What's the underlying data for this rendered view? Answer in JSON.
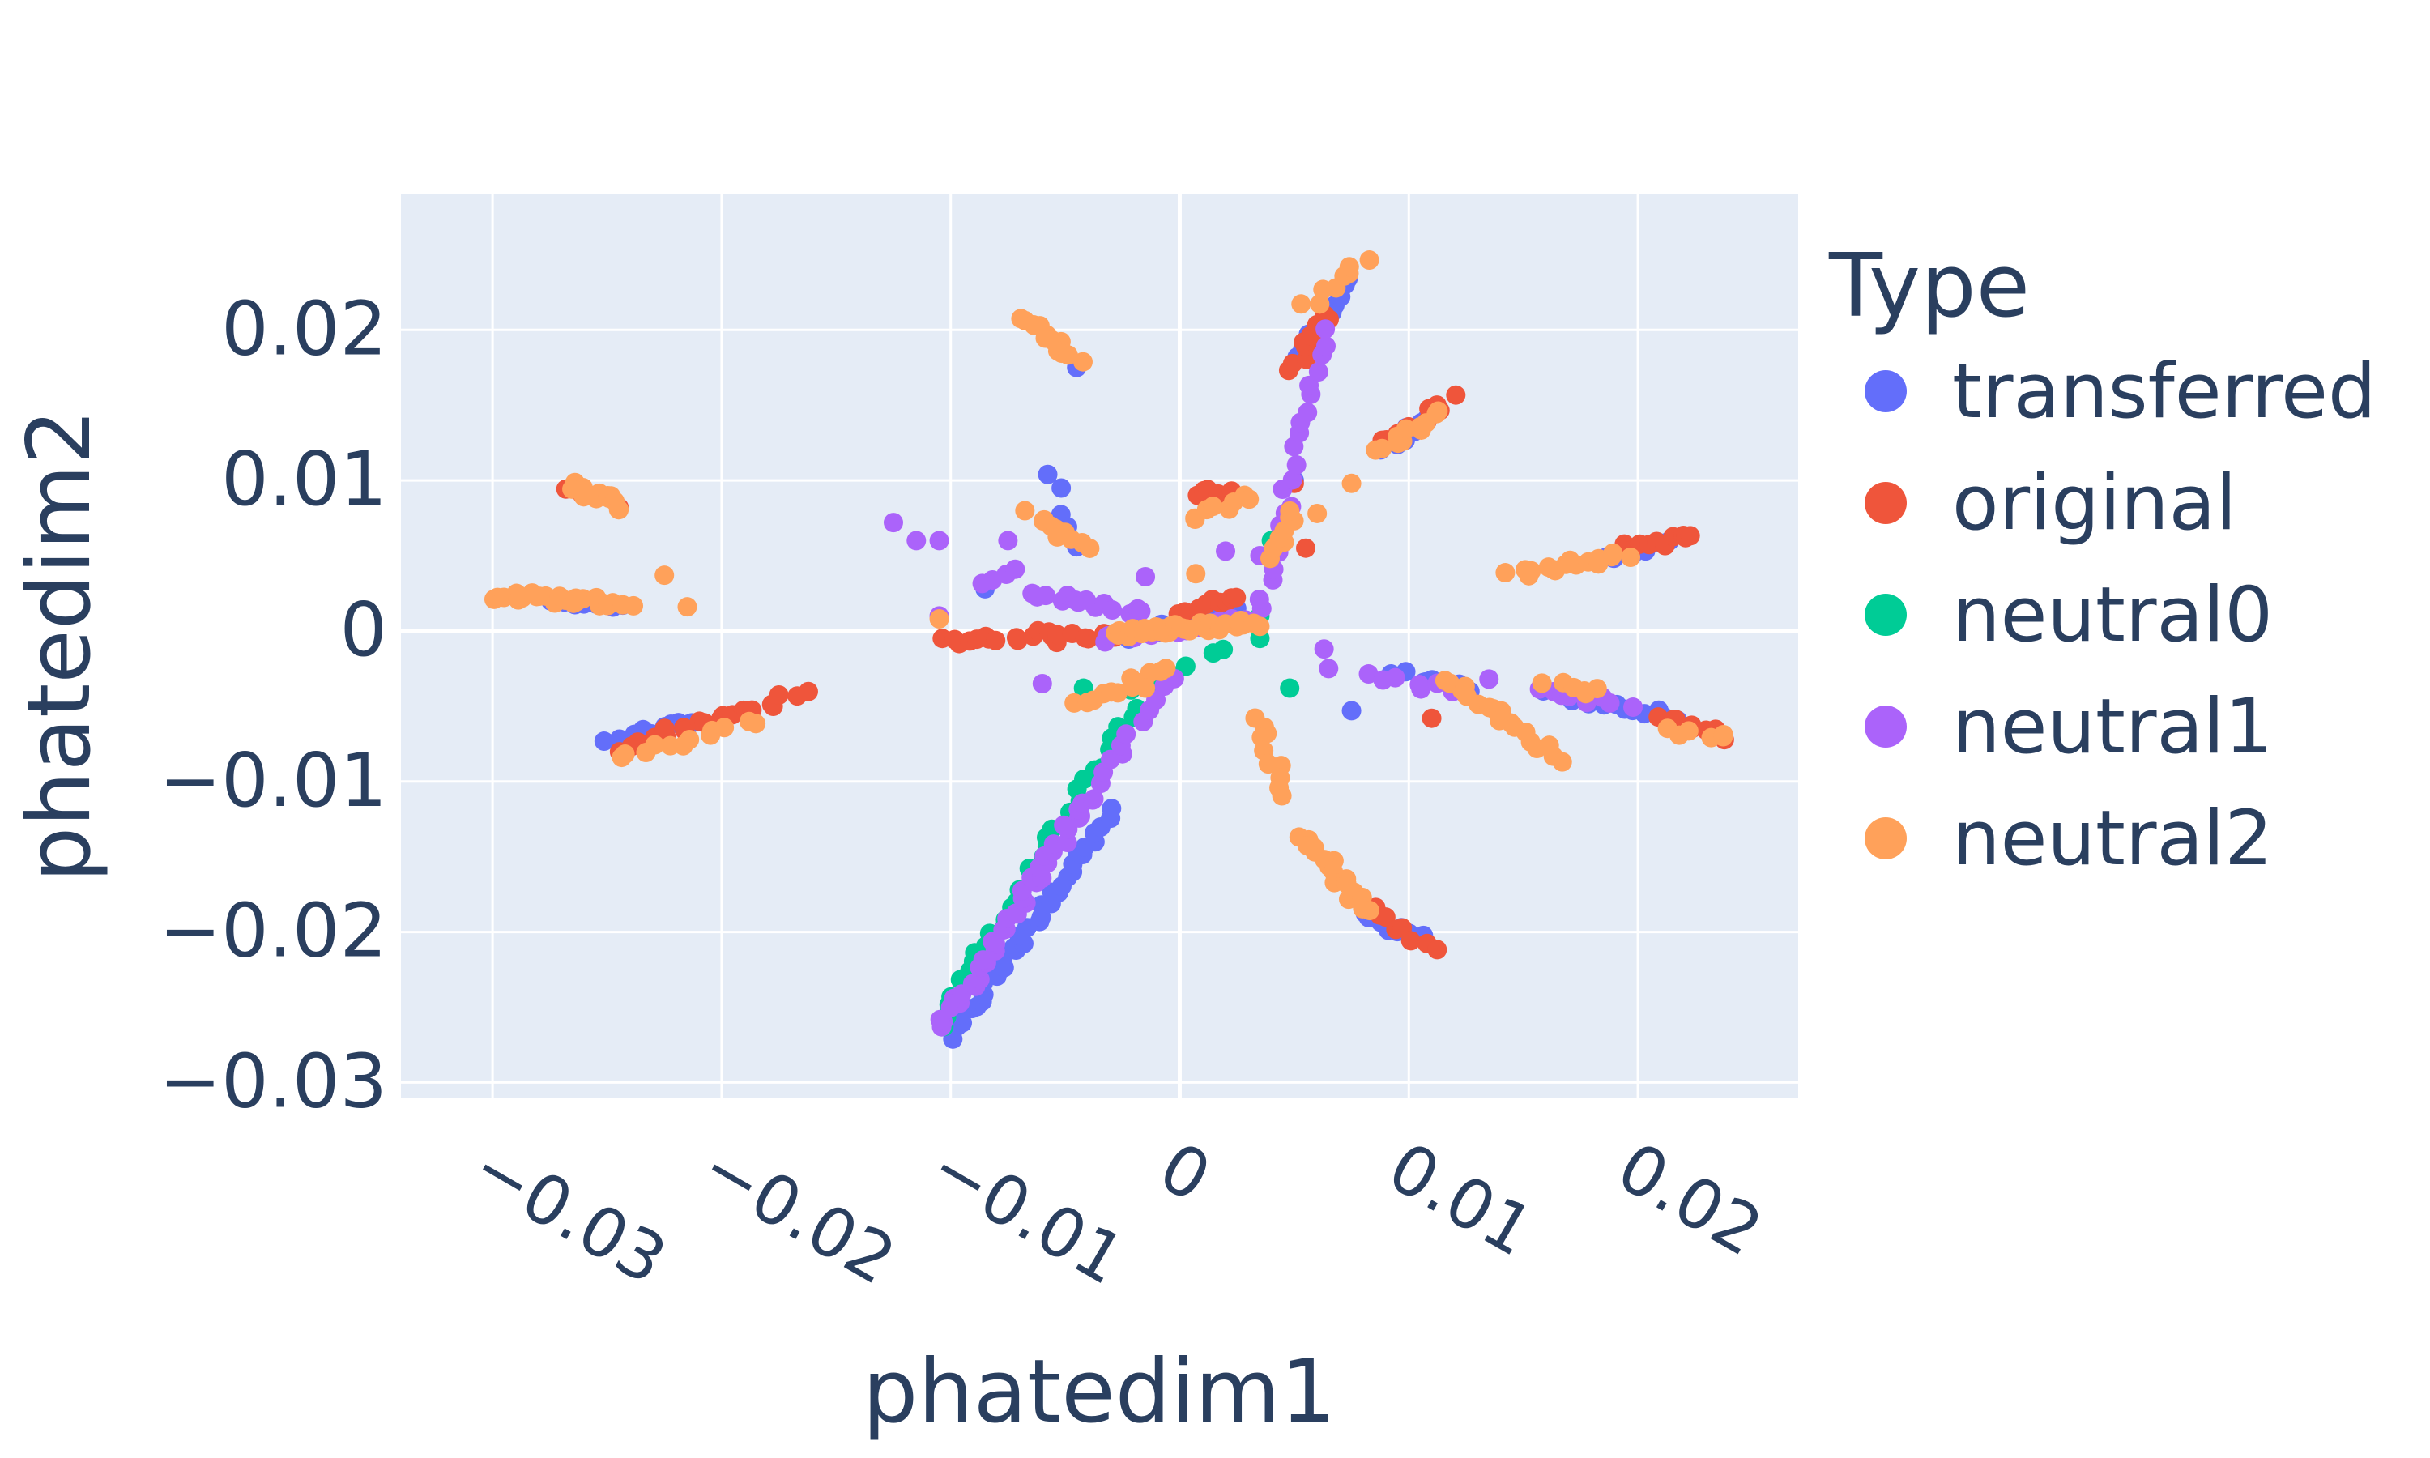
{
  "chart_data": {
    "type": "scatter",
    "xlabel": "phatedim1",
    "ylabel": "phatedim2",
    "xlim": [
      -0.034,
      0.027
    ],
    "ylim": [
      -0.031,
      0.029
    ],
    "x_ticks": [
      -0.03,
      -0.02,
      -0.01,
      0,
      0.01,
      0.02
    ],
    "x_tick_labels": [
      "−0.03",
      "−0.02",
      "−0.01",
      "0",
      "0.01",
      "0.02"
    ],
    "y_ticks": [
      -0.03,
      -0.02,
      -0.01,
      0,
      0.01,
      0.02
    ],
    "y_tick_labels": [
      "−0.03",
      "−0.02",
      "−0.01",
      "0",
      "0.01",
      "0.02"
    ],
    "grid": true,
    "legend_title": "Type",
    "legend_position": "right",
    "plot_bg": "#E5ECF6",
    "series": [
      {
        "name": "transferred",
        "color": "#636EFA",
        "segments": [
          {
            "x0": -0.01,
            "y0": -0.027,
            "x1": -0.003,
            "y1": -0.012,
            "n": 36
          },
          {
            "x0": -0.0275,
            "y0": 0.002,
            "x1": -0.0245,
            "y1": 0.0016,
            "n": 10
          },
          {
            "x0": -0.025,
            "y0": -0.0075,
            "x1": -0.021,
            "y1": -0.006,
            "n": 12
          },
          {
            "x0": 0.005,
            "y0": 0.018,
            "x1": 0.0075,
            "y1": 0.0235,
            "n": 14
          },
          {
            "x0": 0.009,
            "y0": 0.012,
            "x1": 0.011,
            "y1": 0.0143,
            "n": 10
          },
          {
            "x0": 0.0185,
            "y0": 0.0048,
            "x1": 0.0215,
            "y1": 0.0058,
            "n": 10
          },
          {
            "x0": 0.016,
            "y0": -0.004,
            "x1": 0.0215,
            "y1": -0.0058,
            "n": 14
          },
          {
            "x0": 0.0095,
            "y0": -0.0028,
            "x1": 0.0125,
            "y1": -0.004,
            "n": 8
          },
          {
            "x0": 0.008,
            "y0": -0.019,
            "x1": 0.0105,
            "y1": -0.0205,
            "n": 8
          },
          {
            "x0": -0.0025,
            "y0": -0.0005,
            "x1": 0.0025,
            "y1": 0.0015,
            "n": 12
          },
          {
            "x0": -0.0055,
            "y0": 0.0105,
            "x1": -0.0045,
            "y1": 0.0055,
            "n": 5
          }
        ],
        "points": [
          [
            -0.0085,
            0.0028
          ],
          [
            -0.0045,
            0.0175
          ],
          [
            0.005,
            0.01
          ],
          [
            0.0075,
            -0.0053
          ]
        ]
      },
      {
        "name": "original",
        "color": "#EF553B",
        "segments": [
          {
            "x0": -0.0245,
            "y0": -0.0078,
            "x1": -0.0165,
            "y1": -0.0042,
            "n": 22
          },
          {
            "x0": -0.0105,
            "y0": -0.0007,
            "x1": -0.0055,
            "y1": -0.0002,
            "n": 14
          },
          {
            "x0": -0.0055,
            "y0": -0.0005,
            "x1": -0.0025,
            "y1": -0.0001,
            "n": 8
          },
          {
            "x0": 0.005,
            "y0": 0.0175,
            "x1": 0.0065,
            "y1": 0.021,
            "n": 10
          },
          {
            "x0": 0.009,
            "y0": 0.0125,
            "x1": 0.0118,
            "y1": 0.0155,
            "n": 10
          },
          {
            "x0": 0.0195,
            "y0": 0.0055,
            "x1": 0.0225,
            "y1": 0.0063,
            "n": 10
          },
          {
            "x0": 0.021,
            "y0": -0.0057,
            "x1": 0.0235,
            "y1": -0.007,
            "n": 8
          },
          {
            "x0": 0.0085,
            "y0": -0.0185,
            "x1": 0.011,
            "y1": -0.021,
            "n": 8
          },
          {
            "x0": -0.0002,
            "y0": 0.001,
            "x1": 0.0025,
            "y1": 0.0025,
            "n": 10
          },
          {
            "x0": 0.0005,
            "y0": 0.009,
            "x1": 0.002,
            "y1": 0.0095,
            "n": 5
          },
          {
            "x0": -0.0265,
            "y0": 0.0095,
            "x1": -0.0245,
            "y1": 0.0085,
            "n": 5
          }
        ],
        "points": [
          [
            0.0055,
            0.0055
          ],
          [
            0.011,
            -0.0058
          ],
          [
            0.005,
            0.0098
          ]
        ]
      },
      {
        "name": "neutral0",
        "color": "#00CC96",
        "segments": [
          {
            "x0": -0.0105,
            "y0": -0.026,
            "x1": -0.002,
            "y1": -0.005,
            "n": 34
          },
          {
            "x0": -0.002,
            "y0": -0.004,
            "x1": 0.002,
            "y1": -0.001,
            "n": 6
          }
        ],
        "points": [
          [
            0.004,
            0.006
          ],
          [
            0.0035,
            0.001
          ],
          [
            0.0048,
            -0.0038
          ],
          [
            -0.0042,
            -0.0038
          ],
          [
            -0.0065,
            -0.016
          ],
          [
            0.0035,
            -0.0005
          ]
        ]
      },
      {
        "name": "neutral1",
        "color": "#AB63FA",
        "segments": [
          {
            "x0": -0.0105,
            "y0": -0.0265,
            "x1": -0.004,
            "y1": -0.011,
            "n": 40
          },
          {
            "x0": -0.004,
            "y0": -0.011,
            "x1": -0.0005,
            "y1": -0.003,
            "n": 12
          },
          {
            "x0": 0.0035,
            "y0": 0.0015,
            "x1": 0.0065,
            "y1": 0.02,
            "n": 22
          },
          {
            "x0": -0.0065,
            "y0": 0.0025,
            "x1": -0.0015,
            "y1": 0.0012,
            "n": 14
          },
          {
            "x0": -0.0035,
            "y0": -0.0005,
            "x1": 0.003,
            "y1": 0.0008,
            "n": 20
          },
          {
            "x0": 0.0085,
            "y0": -0.003,
            "x1": 0.0125,
            "y1": -0.004,
            "n": 8
          },
          {
            "x0": 0.0155,
            "y0": -0.0038,
            "x1": 0.0195,
            "y1": -0.005,
            "n": 8
          },
          {
            "x0": -0.0085,
            "y0": 0.003,
            "x1": -0.007,
            "y1": 0.004,
            "n": 4
          }
        ],
        "points": [
          [
            -0.0125,
            0.0072
          ],
          [
            -0.0115,
            0.006
          ],
          [
            -0.0105,
            0.006
          ],
          [
            -0.0075,
            0.006
          ],
          [
            -0.0105,
            0.001
          ],
          [
            -0.006,
            -0.0035
          ],
          [
            0.0035,
            0.005
          ],
          [
            0.002,
            0.0053
          ],
          [
            0.0063,
            -0.0012
          ],
          [
            0.0065,
            -0.0025
          ],
          [
            0.0135,
            -0.0032
          ],
          [
            -0.0015,
            0.0036
          ]
        ]
      },
      {
        "name": "neutral2",
        "color": "#FFA15A",
        "segments": [
          {
            "x0": -0.03,
            "y0": 0.0024,
            "x1": -0.024,
            "y1": 0.0018,
            "n": 24
          },
          {
            "x0": -0.0265,
            "y0": 0.0098,
            "x1": -0.0245,
            "y1": 0.0082,
            "n": 14
          },
          {
            "x0": -0.007,
            "y0": 0.021,
            "x1": -0.0045,
            "y1": 0.0178,
            "n": 14
          },
          {
            "x0": -0.0065,
            "y0": 0.0078,
            "x1": -0.004,
            "y1": 0.0055,
            "n": 10
          },
          {
            "x0": -0.0245,
            "y0": -0.0085,
            "x1": -0.0185,
            "y1": -0.006,
            "n": 12
          },
          {
            "x0": -0.0045,
            "y0": -0.005,
            "x1": -0.0005,
            "y1": -0.0025,
            "n": 12
          },
          {
            "x0": -0.003,
            "y0": -0.0002,
            "x1": 0.003,
            "y1": 0.0005,
            "n": 40
          },
          {
            "x0": 0.0005,
            "y0": 0.0075,
            "x1": 0.003,
            "y1": 0.009,
            "n": 8
          },
          {
            "x0": 0.004,
            "y0": 0.005,
            "x1": 0.005,
            "y1": 0.008,
            "n": 8
          },
          {
            "x0": 0.0055,
            "y0": 0.0215,
            "x1": 0.008,
            "y1": 0.0248,
            "n": 8
          },
          {
            "x0": 0.0088,
            "y0": 0.012,
            "x1": 0.0115,
            "y1": 0.0145,
            "n": 12
          },
          {
            "x0": 0.0145,
            "y0": 0.0038,
            "x1": 0.0195,
            "y1": 0.005,
            "n": 16
          },
          {
            "x0": 0.0115,
            "y0": -0.003,
            "x1": 0.0165,
            "y1": -0.0085,
            "n": 18
          },
          {
            "x0": 0.016,
            "y0": -0.0035,
            "x1": 0.0185,
            "y1": -0.004,
            "n": 6
          },
          {
            "x0": 0.0215,
            "y0": -0.0065,
            "x1": 0.024,
            "y1": -0.0072,
            "n": 6
          },
          {
            "x0": 0.0035,
            "y0": -0.0055,
            "x1": 0.0045,
            "y1": -0.011,
            "n": 10
          },
          {
            "x0": 0.0055,
            "y0": -0.0135,
            "x1": 0.008,
            "y1": -0.0185,
            "n": 18
          }
        ],
        "points": [
          [
            -0.0225,
            0.0037
          ],
          [
            -0.0215,
            0.0016
          ],
          [
            -0.0105,
            0.0008
          ],
          [
            0.0035,
            0.0003
          ],
          [
            0.006,
            0.0078
          ],
          [
            0.0075,
            0.0098
          ],
          [
            -0.0015,
            -0.0038
          ],
          [
            0.0007,
            0.0038
          ]
        ]
      }
    ]
  }
}
